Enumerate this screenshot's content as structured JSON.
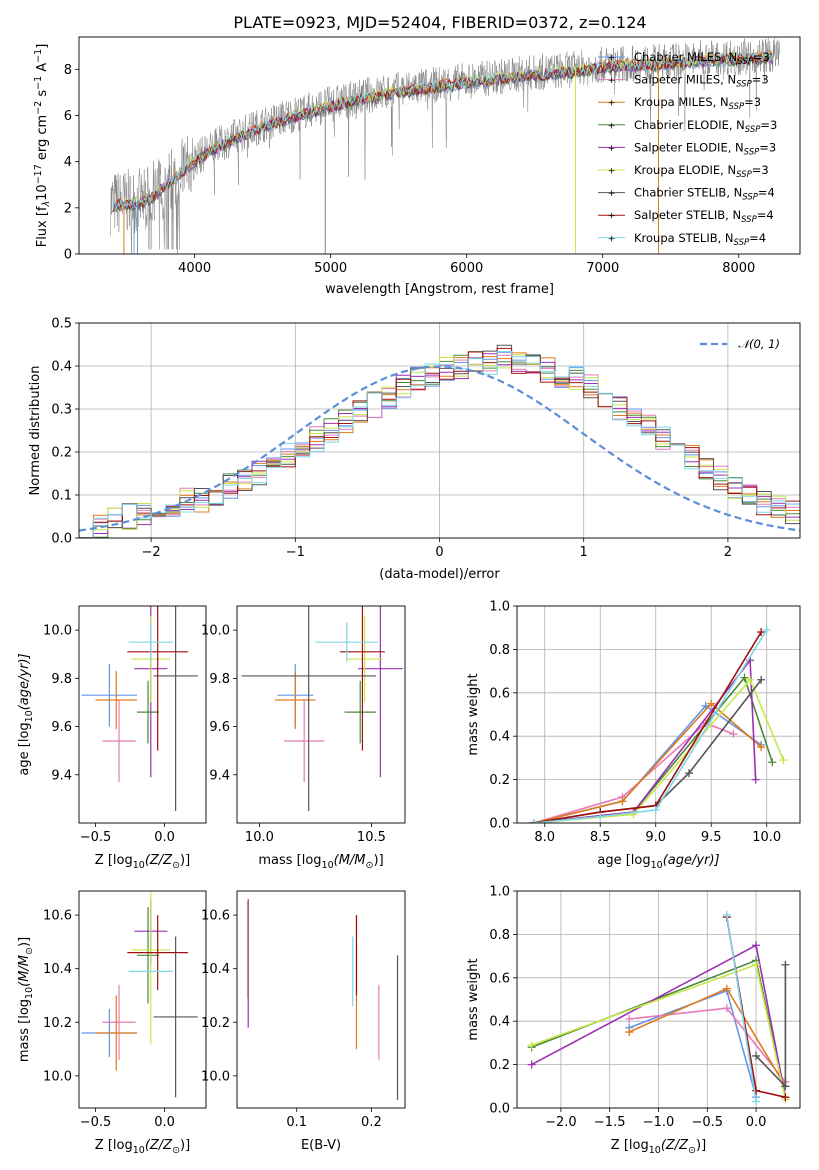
{
  "figure_title": "PLATE=0923, MJD=52404, FIBERID=0372, z=0.124",
  "legend_sub": "SSP",
  "colors": {
    "chab_miles": "#6495ed",
    "salp_miles": "#e87ab8",
    "krou_miles": "#e07b1c",
    "chab_elodie": "#4a8a3a",
    "salp_elodie": "#9b30b0",
    "krou_elodie": "#c7e84c",
    "chab_stelib": "#555555",
    "salp_stelib": "#a01010",
    "krou_stelib": "#7fd6e6",
    "data": "#808080",
    "normal": "#5b8fd8"
  },
  "chart_data": [
    {
      "id": "spectrum",
      "type": "line",
      "title": "PLATE=0923, MJD=52404, FIBERID=0372, z=0.124",
      "xlabel": "wavelength [Angstrom, rest frame]",
      "ylabel_main": "Flux [f",
      "ylabel_sub": "λ",
      "ylabel_mid": "10",
      "ylabel_sup1": "−17",
      "ylabel_unit": " erg cm",
      "ylabel_sup2": "−2",
      "ylabel_s": " s",
      "ylabel_sup3": "−1",
      "ylabel_a": " A",
      "ylabel_sup4": "−1",
      "ylabel_end": "]",
      "xlim": [
        3150,
        8450
      ],
      "ylim": [
        0,
        9.4
      ],
      "xticks": [
        4000,
        5000,
        6000,
        7000,
        8000
      ],
      "yticks": [
        0,
        2,
        4,
        6,
        8
      ],
      "continuum": {
        "x": [
          3400,
          3600,
          3700,
          3800,
          3900,
          4000,
          4100,
          4300,
          4500,
          4700,
          5000,
          5300,
          5600,
          6000,
          6400,
          6800,
          7000,
          7400,
          7800,
          8200
        ],
        "y": [
          2.2,
          2.3,
          2.6,
          3.1,
          3.6,
          4.1,
          4.5,
          5.1,
          5.6,
          6.0,
          6.5,
          6.9,
          7.2,
          7.5,
          7.8,
          8.0,
          8.2,
          8.3,
          8.5,
          8.6
        ]
      },
      "legend": [
        {
          "name": "Chabrier MILES, N",
          "tail": "=3",
          "color": "#6495ed"
        },
        {
          "name": "Salpeter MILES, N",
          "tail": "=3",
          "color": "#e87ab8"
        },
        {
          "name": "Kroupa MILES, N",
          "tail": "=3",
          "color": "#e07b1c"
        },
        {
          "name": "Chabrier ELODIE, N",
          "tail": "=3",
          "color": "#4a8a3a"
        },
        {
          "name": "Salpeter ELODIE, N",
          "tail": "=3",
          "color": "#9b30b0"
        },
        {
          "name": "Kroupa ELODIE, N",
          "tail": "=3",
          "color": "#c7e84c"
        },
        {
          "name": "Chabrier STELIB, N",
          "tail": "=4",
          "color": "#555555"
        },
        {
          "name": "Salpeter STELIB, N",
          "tail": "=4",
          "color": "#a01010"
        },
        {
          "name": "Kroupa STELIB, N",
          "tail": "=4",
          "color": "#7fd6e6"
        }
      ]
    },
    {
      "id": "residuals",
      "type": "bar",
      "xlabel": "(data-model)/error",
      "ylabel": "Normed distribution",
      "xlim": [
        -2.5,
        2.5
      ],
      "ylim": [
        0,
        0.5
      ],
      "xticks": [
        -2,
        -1,
        0,
        1,
        2
      ],
      "yticks": [
        0.0,
        0.1,
        0.2,
        0.3,
        0.4,
        0.5
      ],
      "legend": "𝒩(0, 1)",
      "bin_edges_start": -2.5,
      "bin_width": 0.1,
      "base_hist": [
        0.03,
        0.03,
        0.04,
        0.05,
        0.06,
        0.07,
        0.08,
        0.09,
        0.09,
        0.1,
        0.12,
        0.14,
        0.15,
        0.17,
        0.19,
        0.21,
        0.23,
        0.25,
        0.27,
        0.29,
        0.31,
        0.33,
        0.35,
        0.37,
        0.38,
        0.39,
        0.4,
        0.41,
        0.41,
        0.42,
        0.41,
        0.4,
        0.39,
        0.38,
        0.37,
        0.35,
        0.33,
        0.3,
        0.28,
        0.26,
        0.23,
        0.21,
        0.19,
        0.16,
        0.14,
        0.12,
        0.1,
        0.08,
        0.07,
        0.06
      ]
    },
    {
      "id": "age_vs_Z",
      "type": "scatter",
      "xlabel": "Z [log",
      "xlabel_sub": "10",
      "xlabel_rest": "(Z/Z",
      "xlabel_sun": "⊙",
      "xlabel_end": ")]",
      "ylabel": "age  [log",
      "ylabel_sub": "10",
      "ylabel_rest": "(age/yr)]",
      "xlim": [
        -0.62,
        0.3
      ],
      "ylim": [
        9.2,
        10.1
      ],
      "xticks": [
        -0.5,
        0.0
      ],
      "yticks": [
        9.4,
        9.6,
        9.8,
        10.0
      ],
      "points": [
        {
          "x": -0.4,
          "y": 9.73,
          "xerr": 0.2,
          "yerr": 0.13,
          "color": "#6495ed"
        },
        {
          "x": -0.33,
          "y": 9.54,
          "xerr": 0.12,
          "yerr": 0.17,
          "color": "#e87ab8"
        },
        {
          "x": -0.35,
          "y": 9.71,
          "xerr": 0.15,
          "yerr": 0.12,
          "color": "#e07b1c"
        },
        {
          "x": -0.12,
          "y": 9.66,
          "xerr": 0.08,
          "yerr": 0.13,
          "color": "#4a8a3a"
        },
        {
          "x": -0.1,
          "y": 9.84,
          "xerr": 0.12,
          "yerr": 0.45,
          "color": "#9b30b0"
        },
        {
          "x": -0.1,
          "y": 9.88,
          "xerr": 0.14,
          "yerr": 0.18,
          "color": "#c7e84c"
        },
        {
          "x": 0.08,
          "y": 9.81,
          "xerr": 0.16,
          "yerr": 0.56,
          "color": "#555555"
        },
        {
          "x": -0.05,
          "y": 9.91,
          "xerr": 0.22,
          "yerr": 0.41,
          "color": "#a01010"
        },
        {
          "x": -0.1,
          "y": 9.95,
          "xerr": 0.16,
          "yerr": 0.08,
          "color": "#7fd6e6"
        }
      ]
    },
    {
      "id": "age_vs_mass",
      "type": "scatter",
      "xlabel": "mass [log",
      "xlabel_sub": "10",
      "xlabel_rest": "(M/M",
      "xlabel_sun": "⊙",
      "xlabel_end": ")]",
      "xlim": [
        9.9,
        10.65
      ],
      "ylim": [
        9.2,
        10.1
      ],
      "xticks": [
        10.0,
        10.5
      ],
      "yticks": [
        9.4,
        9.6,
        9.8,
        10.0
      ],
      "points": [
        {
          "x": 10.16,
          "y": 9.73,
          "xerr": 0.08,
          "yerr": 0.13,
          "color": "#6495ed"
        },
        {
          "x": 10.2,
          "y": 9.54,
          "xerr": 0.09,
          "yerr": 0.17,
          "color": "#e87ab8"
        },
        {
          "x": 10.16,
          "y": 9.71,
          "xerr": 0.09,
          "yerr": 0.12,
          "color": "#e07b1c"
        },
        {
          "x": 10.45,
          "y": 9.66,
          "xerr": 0.07,
          "yerr": 0.13,
          "color": "#4a8a3a"
        },
        {
          "x": 10.54,
          "y": 9.84,
          "xerr": 0.1,
          "yerr": 0.45,
          "color": "#9b30b0"
        },
        {
          "x": 10.47,
          "y": 9.88,
          "xerr": 0.08,
          "yerr": 0.18,
          "color": "#c7e84c"
        },
        {
          "x": 10.22,
          "y": 9.81,
          "xerr": 0.3,
          "yerr": 0.56,
          "color": "#555555"
        },
        {
          "x": 10.46,
          "y": 9.91,
          "xerr": 0.1,
          "yerr": 0.41,
          "color": "#a01010"
        },
        {
          "x": 10.39,
          "y": 9.95,
          "xerr": 0.14,
          "yerr": 0.08,
          "color": "#7fd6e6"
        }
      ]
    },
    {
      "id": "weight_vs_age",
      "type": "line",
      "xlabel": "age  [log",
      "xlabel_sub": "10",
      "xlabel_rest": "(age/yr)]",
      "ylabel": "mass weight",
      "xlim": [
        7.75,
        10.3
      ],
      "ylim": [
        0,
        1.0
      ],
      "xticks": [
        8.0,
        8.5,
        9.0,
        9.5,
        10.0
      ],
      "yticks": [
        0.0,
        0.2,
        0.4,
        0.6,
        0.8,
        1.0
      ],
      "series": [
        {
          "color": "#6495ed",
          "x": [
            7.9,
            8.7,
            9.45,
            9.95
          ],
          "y": [
            0.0,
            0.1,
            0.54,
            0.36
          ]
        },
        {
          "color": "#e87ab8",
          "x": [
            7.9,
            8.7,
            9.45,
            9.7
          ],
          "y": [
            0.0,
            0.12,
            0.46,
            0.41
          ]
        },
        {
          "color": "#e07b1c",
          "x": [
            7.9,
            8.7,
            9.5,
            9.95
          ],
          "y": [
            0.0,
            0.1,
            0.55,
            0.35
          ]
        },
        {
          "color": "#4a8a3a",
          "x": [
            7.9,
            8.8,
            9.8,
            10.05
          ],
          "y": [
            0.0,
            0.05,
            0.67,
            0.28
          ]
        },
        {
          "color": "#9b30b0",
          "x": [
            7.9,
            8.8,
            9.85,
            9.9
          ],
          "y": [
            0.0,
            0.05,
            0.75,
            0.2
          ]
        },
        {
          "color": "#c7e84c",
          "x": [
            7.9,
            8.8,
            9.85,
            10.15
          ],
          "y": [
            0.0,
            0.04,
            0.66,
            0.29
          ]
        },
        {
          "color": "#555555",
          "x": [
            7.9,
            8.5,
            9.0,
            9.3,
            9.95
          ],
          "y": [
            0.0,
            0.05,
            0.08,
            0.23,
            0.66
          ]
        },
        {
          "color": "#a01010",
          "x": [
            7.9,
            8.5,
            9.0,
            9.95
          ],
          "y": [
            0.0,
            0.05,
            0.08,
            0.88
          ]
        },
        {
          "color": "#7fd6e6",
          "x": [
            7.9,
            8.5,
            9.0,
            10.0
          ],
          "y": [
            0.0,
            0.03,
            0.06,
            0.89
          ]
        }
      ]
    },
    {
      "id": "mass_vs_Z",
      "type": "scatter",
      "xlabel": "Z [log",
      "xlabel_sub": "10",
      "xlabel_rest": "(Z/Z",
      "xlabel_sun": "⊙",
      "xlabel_end": ")]",
      "ylabel": "mass [log",
      "ylabel_sub": "10",
      "ylabel_rest": "(M/M",
      "ylabel_sun": "⊙",
      "ylabel_end": ")]",
      "xlim": [
        -0.62,
        0.3
      ],
      "ylim": [
        9.88,
        10.69
      ],
      "xticks": [
        -0.5,
        0.0
      ],
      "yticks": [
        10.0,
        10.2,
        10.4,
        10.6
      ],
      "points": [
        {
          "x": -0.4,
          "y": 10.16,
          "xerr": 0.2,
          "yerr": 0.09,
          "color": "#6495ed"
        },
        {
          "x": -0.33,
          "y": 10.2,
          "xerr": 0.12,
          "yerr": 0.14,
          "color": "#e87ab8"
        },
        {
          "x": -0.35,
          "y": 10.16,
          "xerr": 0.15,
          "yerr": 0.14,
          "color": "#e07b1c"
        },
        {
          "x": -0.12,
          "y": 10.45,
          "xerr": 0.08,
          "yerr": 0.18,
          "color": "#4a8a3a"
        },
        {
          "x": -0.1,
          "y": 10.54,
          "xerr": 0.12,
          "yerr": 0.12,
          "color": "#9b30b0"
        },
        {
          "x": -0.1,
          "y": 10.47,
          "xerr": 0.14,
          "yerr": 0.35,
          "color": "#c7e84c"
        },
        {
          "x": 0.08,
          "y": 10.22,
          "xerr": 0.16,
          "yerr": 0.3,
          "color": "#555555"
        },
        {
          "x": -0.05,
          "y": 10.46,
          "xerr": 0.22,
          "yerr": 0.14,
          "color": "#a01010"
        },
        {
          "x": -0.1,
          "y": 10.39,
          "xerr": 0.16,
          "yerr": 0.0,
          "color": "#7fd6e6"
        }
      ]
    },
    {
      "id": "mass_vs_ebv",
      "type": "scatter",
      "xlabel": "E(B-V)",
      "xlim": [
        0.02,
        0.245
      ],
      "ylim": [
        9.88,
        10.69
      ],
      "xticks": [
        0.1,
        0.2
      ],
      "yticks": [
        10.0,
        10.2,
        10.4,
        10.6
      ],
      "points": [
        {
          "x": 0.034,
          "y": 10.47,
          "yerr": 0.18,
          "color": "#c7e84c"
        },
        {
          "x": 0.035,
          "y": 10.42,
          "yerr": 0.24,
          "color": "#9b30b0"
        },
        {
          "x": 0.175,
          "y": 10.39,
          "yerr": 0.13,
          "color": "#7fd6e6"
        },
        {
          "x": 0.18,
          "y": 10.35,
          "yerr": 0.25,
          "color": "#e07b1c"
        },
        {
          "x": 0.18,
          "y": 10.45,
          "yerr": 0.15,
          "color": "#a01010"
        },
        {
          "x": 0.21,
          "y": 10.2,
          "yerr": 0.14,
          "color": "#e87ab8"
        },
        {
          "x": 0.235,
          "y": 10.18,
          "yerr": 0.27,
          "color": "#555555"
        }
      ]
    },
    {
      "id": "weight_vs_Z",
      "type": "line",
      "xlabel": "Z [log",
      "xlabel_sub": "10",
      "xlabel_rest": "(Z/Z",
      "xlabel_sun": "⊙",
      "xlabel_end": ")]",
      "ylabel": "mass weight",
      "xlim": [
        -2.45,
        0.45
      ],
      "ylim": [
        0,
        1.0
      ],
      "xticks": [
        -2.0,
        -1.5,
        -1.0,
        -0.5,
        0.0
      ],
      "yticks": [
        0.0,
        0.2,
        0.4,
        0.6,
        0.8,
        1.0
      ],
      "series": [
        {
          "color": "#6495ed",
          "x": [
            -1.3,
            -0.3,
            0.0
          ],
          "y": [
            0.37,
            0.54,
            0.05
          ]
        },
        {
          "color": "#e87ab8",
          "x": [
            -1.3,
            -0.3,
            0.3
          ],
          "y": [
            0.41,
            0.46,
            0.12
          ]
        },
        {
          "color": "#e07b1c",
          "x": [
            -1.3,
            -0.3,
            0.3
          ],
          "y": [
            0.35,
            0.55,
            0.1
          ]
        },
        {
          "color": "#4a8a3a",
          "x": [
            -2.3,
            0.0,
            0.3
          ],
          "y": [
            0.28,
            0.68,
            0.05
          ]
        },
        {
          "color": "#9b30b0",
          "x": [
            -2.3,
            0.0,
            0.3
          ],
          "y": [
            0.2,
            0.75,
            0.05
          ]
        },
        {
          "color": "#c7e84c",
          "x": [
            -2.3,
            0.0,
            0.3
          ],
          "y": [
            0.29,
            0.66,
            0.04
          ]
        },
        {
          "color": "#555555",
          "x": [
            0.0,
            0.3,
            0.3
          ],
          "y": [
            0.24,
            0.1,
            0.66
          ]
        },
        {
          "color": "#a01010",
          "x": [
            -0.3,
            0.0,
            0.3
          ],
          "y": [
            0.88,
            0.08,
            0.05
          ]
        },
        {
          "color": "#7fd6e6",
          "x": [
            -0.3,
            0.0
          ],
          "y": [
            0.89,
            0.03
          ]
        }
      ]
    }
  ]
}
